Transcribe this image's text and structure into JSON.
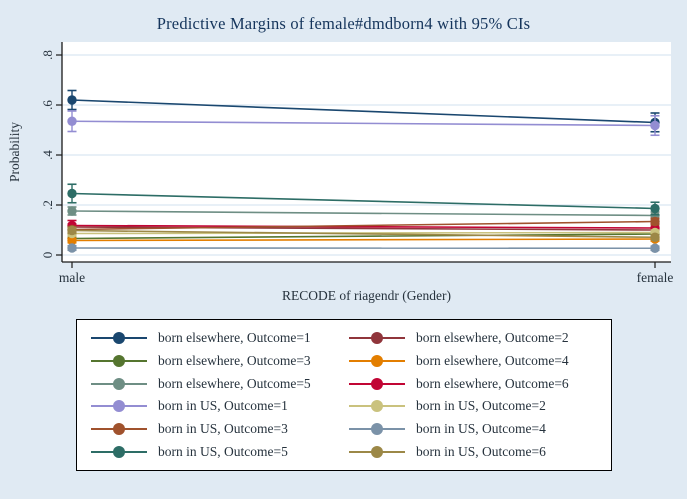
{
  "title": "Predictive Margins of female#dmdborn4 with 95% CIs",
  "axes": {
    "ylabel": "Probability",
    "xlabel": "RECODE of riagendr (Gender)"
  },
  "chart_data": {
    "type": "line",
    "title": "Predictive Margins of female#dmdborn4 with 95% CIs",
    "xlabel": "RECODE of riagendr (Gender)",
    "ylabel": "Probability",
    "categories": [
      "male",
      "female"
    ],
    "ylim": [
      0,
      0.8
    ],
    "yticks": {
      "values": [
        0,
        0.2,
        0.4,
        0.6,
        0.8
      ],
      "labels": [
        "0",
        ".2",
        ".4",
        ".6",
        ".8"
      ]
    },
    "grid": true,
    "error_bars": "95% CI",
    "legend_position": "bottom",
    "series": [
      {
        "name": "born elsewhere, Outcome=1",
        "color": "#1a476f",
        "values": [
          0.62,
          0.53
        ],
        "ci": [
          [
            0.582,
            0.658
          ],
          [
            0.493,
            0.568
          ]
        ]
      },
      {
        "name": "born elsewhere, Outcome=2",
        "color": "#90353b",
        "values": [
          0.112,
          0.1
        ],
        "ci": [
          [
            0.1,
            0.124
          ],
          [
            0.089,
            0.111
          ]
        ]
      },
      {
        "name": "born elsewhere, Outcome=3",
        "color": "#55752f",
        "values": [
          0.066,
          0.084
        ],
        "ci": [
          [
            0.056,
            0.076
          ],
          [
            0.074,
            0.094
          ]
        ]
      },
      {
        "name": "born elsewhere, Outcome=4",
        "color": "#e37e00",
        "values": [
          0.058,
          0.064
        ],
        "ci": [
          [
            0.049,
            0.067
          ],
          [
            0.056,
            0.072
          ]
        ]
      },
      {
        "name": "born elsewhere, Outcome=5",
        "color": "#6e8e84",
        "values": [
          0.176,
          0.158
        ],
        "ci": [
          [
            0.16,
            0.192
          ],
          [
            0.144,
            0.172
          ]
        ]
      },
      {
        "name": "born elsewhere, Outcome=6",
        "color": "#c10534",
        "values": [
          0.118,
          0.108
        ],
        "ci": [
          [
            0.098,
            0.138
          ],
          [
            0.091,
            0.125
          ]
        ]
      },
      {
        "name": "born in US, Outcome=1",
        "color": "#938dd2",
        "values": [
          0.535,
          0.518
        ],
        "ci": [
          [
            0.494,
            0.576
          ],
          [
            0.479,
            0.557
          ]
        ]
      },
      {
        "name": "born in US, Outcome=2",
        "color": "#cac27e",
        "values": [
          0.086,
          0.09
        ],
        "ci": [
          [
            0.076,
            0.096
          ],
          [
            0.081,
            0.099
          ]
        ]
      },
      {
        "name": "born in US, Outcome=3",
        "color": "#a0522d",
        "values": [
          0.102,
          0.134
        ],
        "ci": [
          [
            0.09,
            0.114
          ],
          [
            0.121,
            0.147
          ]
        ]
      },
      {
        "name": "born in US, Outcome=4",
        "color": "#7b92a8",
        "values": [
          0.028,
          0.027
        ],
        "ci": [
          [
            0.019,
            0.037
          ],
          [
            0.019,
            0.035
          ]
        ]
      },
      {
        "name": "born in US, Outcome=5",
        "color": "#2d6d66",
        "values": [
          0.246,
          0.186
        ],
        "ci": [
          [
            0.209,
            0.283
          ],
          [
            0.161,
            0.211
          ]
        ]
      },
      {
        "name": "born in US, Outcome=6",
        "color": "#9c8847",
        "values": [
          0.098,
          0.071
        ],
        "ci": [
          [
            0.086,
            0.11
          ],
          [
            0.061,
            0.081
          ]
        ]
      }
    ]
  },
  "colors": {
    "background": "#e0eaf3",
    "plot_bg": "#ffffff",
    "grid": "#d2e2ef",
    "axis": "#1a1a1a",
    "text": "#26323d",
    "title": "#15355c",
    "legend_border": "#000000"
  }
}
